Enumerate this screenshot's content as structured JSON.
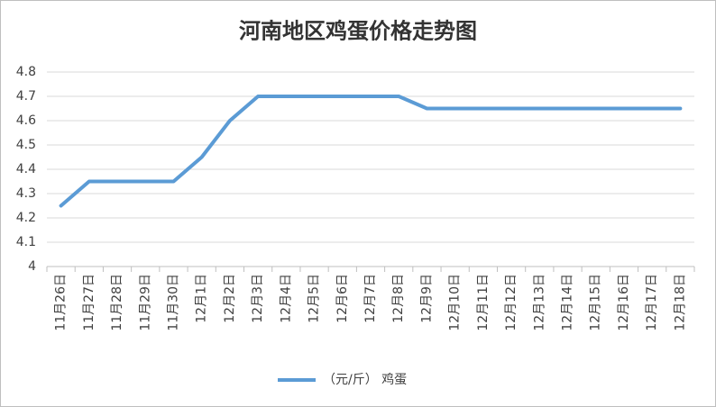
{
  "chart_data": {
    "type": "line",
    "title": "河南地区鸡蛋价格走势图",
    "categories": [
      "11月26日",
      "11月27日",
      "11月28日",
      "11月29日",
      "11月30日",
      "12月1日",
      "12月2日",
      "12月3日",
      "12月4日",
      "12月5日",
      "12月6日",
      "12月7日",
      "12月8日",
      "12月9日",
      "12月10日",
      "12月11日",
      "12月12日",
      "12月13日",
      "12月14日",
      "12月15日",
      "12月16日",
      "12月17日",
      "12月18日"
    ],
    "series": [
      {
        "name": "（元/斤） 鸡蛋",
        "color": "#5b9bd5",
        "values": [
          4.25,
          4.35,
          4.35,
          4.35,
          4.35,
          4.45,
          4.6,
          4.7,
          4.7,
          4.7,
          4.7,
          4.7,
          4.7,
          4.65,
          4.65,
          4.65,
          4.65,
          4.65,
          4.65,
          4.65,
          4.65,
          4.65,
          4.65
        ]
      }
    ],
    "ylim": [
      4,
      4.8
    ],
    "yticks": [
      4,
      4.1,
      4.2,
      4.3,
      4.4,
      4.5,
      4.6,
      4.7,
      4.8
    ],
    "grid": true,
    "legend": "bottom"
  }
}
